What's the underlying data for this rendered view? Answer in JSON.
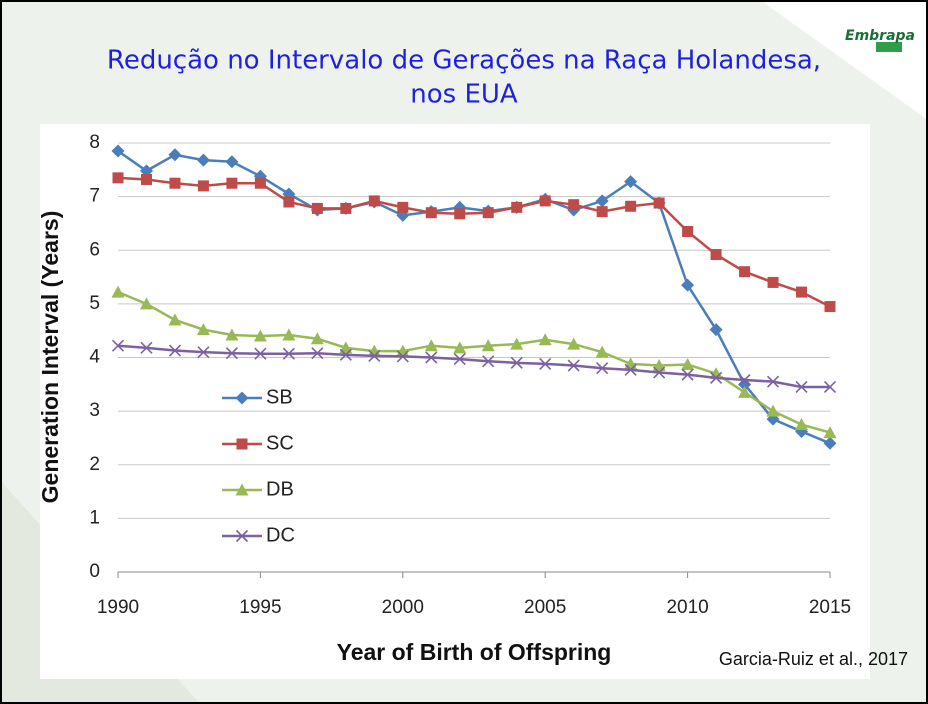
{
  "chart_data": {
    "type": "line",
    "title": [
      "Redução no Intervalo de Gerações na Raça Holandesa,",
      "nos EUA"
    ],
    "logo": "Embrapa",
    "source": "Garcia-Ruiz et al., 2017",
    "x_label": "Year of Birth of Offspring",
    "y_label": "Generation Interval (Years)",
    "x": [
      1990,
      1991,
      1992,
      1993,
      1994,
      1995,
      1996,
      1997,
      1998,
      1999,
      2000,
      2001,
      2002,
      2003,
      2004,
      2005,
      2006,
      2007,
      2008,
      2009,
      2010,
      2011,
      2012,
      2013,
      2014,
      2015
    ],
    "xlim": [
      1990,
      2015
    ],
    "xticks": [
      1990,
      1995,
      2000,
      2005,
      2010,
      2015
    ],
    "ylim": [
      0,
      8
    ],
    "yticks": [
      0,
      1,
      2,
      3,
      4,
      5,
      6,
      7,
      8
    ],
    "grid": true,
    "series": [
      {
        "name": "SB",
        "color": "#4a7ebb",
        "marker": "diamond",
        "values": [
          7.85,
          7.48,
          7.78,
          7.68,
          7.65,
          7.38,
          7.05,
          6.75,
          6.78,
          6.9,
          6.65,
          6.72,
          6.8,
          6.73,
          6.8,
          6.95,
          6.75,
          6.92,
          7.28,
          6.88,
          5.35,
          4.52,
          3.5,
          2.85,
          2.62,
          2.4
        ]
      },
      {
        "name": "SC",
        "color": "#be4b48",
        "marker": "square",
        "values": [
          7.35,
          7.32,
          7.25,
          7.2,
          7.25,
          7.25,
          6.9,
          6.78,
          6.78,
          6.92,
          6.8,
          6.7,
          6.68,
          6.7,
          6.8,
          6.92,
          6.85,
          6.72,
          6.82,
          6.88,
          6.35,
          5.92,
          5.6,
          5.4,
          5.22,
          4.95
        ]
      },
      {
        "name": "DB",
        "color": "#98b954",
        "marker": "triangle",
        "values": [
          5.22,
          5.0,
          4.7,
          4.52,
          4.42,
          4.4,
          4.42,
          4.35,
          4.18,
          4.12,
          4.12,
          4.22,
          4.18,
          4.22,
          4.25,
          4.33,
          4.25,
          4.1,
          3.88,
          3.85,
          3.87,
          3.7,
          3.35,
          3.0,
          2.75,
          2.6
        ]
      },
      {
        "name": "DC",
        "color": "#7d60a0",
        "marker": "x",
        "values": [
          4.22,
          4.18,
          4.13,
          4.1,
          4.08,
          4.07,
          4.07,
          4.08,
          4.05,
          4.03,
          4.02,
          4.0,
          3.97,
          3.93,
          3.9,
          3.88,
          3.85,
          3.8,
          3.77,
          3.72,
          3.68,
          3.62,
          3.58,
          3.55,
          3.45,
          3.45
        ]
      }
    ]
  }
}
